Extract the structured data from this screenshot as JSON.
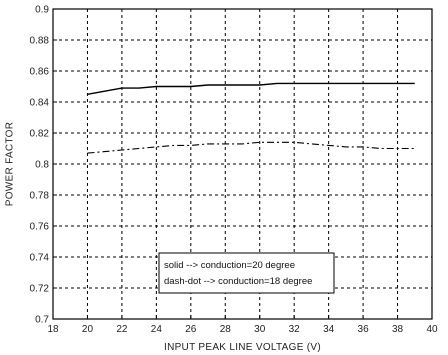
{
  "chart_data": {
    "type": "line",
    "title": "",
    "xlabel": "INPUT PEAK LINE VOLTAGE (V)",
    "ylabel": "POWER FACTOR",
    "xlim": [
      18,
      40
    ],
    "ylim": [
      0.7,
      0.9
    ],
    "x_ticks": [
      18,
      20,
      22,
      24,
      26,
      28,
      30,
      32,
      34,
      36,
      38,
      40
    ],
    "y_ticks": [
      0.7,
      0.72,
      0.74,
      0.76,
      0.78,
      0.8,
      0.82,
      0.84,
      0.86,
      0.88,
      0.9
    ],
    "x_tick_labels": [
      "18",
      "20",
      "22",
      "24",
      "26",
      "28",
      "30",
      "32",
      "34",
      "36",
      "38",
      "40"
    ],
    "y_tick_labels": [
      "0.7",
      "0.72",
      "0.74",
      "0.76",
      "0.78",
      "0.8",
      "0.82",
      "0.84",
      "0.86",
      "0.88",
      "0.9"
    ],
    "grid": true,
    "legend_position": "bottom-center",
    "series": [
      {
        "name": "solid --> conduction=20 degree",
        "style": "solid",
        "x": [
          20,
          21,
          22,
          23,
          24,
          25,
          26,
          27,
          28,
          29,
          30,
          31,
          32,
          33,
          34,
          35,
          36,
          37,
          38,
          39
        ],
        "y": [
          0.845,
          0.847,
          0.849,
          0.849,
          0.85,
          0.85,
          0.85,
          0.851,
          0.851,
          0.851,
          0.851,
          0.852,
          0.852,
          0.852,
          0.852,
          0.852,
          0.852,
          0.852,
          0.852,
          0.852
        ]
      },
      {
        "name": "dash-dot --> conduction=18 degree",
        "style": "dashdot",
        "x": [
          20,
          21,
          22,
          23,
          24,
          25,
          26,
          27,
          28,
          29,
          30,
          31,
          32,
          33,
          34,
          35,
          36,
          37,
          38,
          39
        ],
        "y": [
          0.807,
          0.808,
          0.809,
          0.81,
          0.811,
          0.812,
          0.812,
          0.813,
          0.813,
          0.813,
          0.814,
          0.814,
          0.814,
          0.813,
          0.812,
          0.811,
          0.811,
          0.81,
          0.81,
          0.81
        ]
      }
    ],
    "colors": {
      "line": "#000000",
      "grid": "#000000",
      "background": "#ffffff"
    }
  }
}
